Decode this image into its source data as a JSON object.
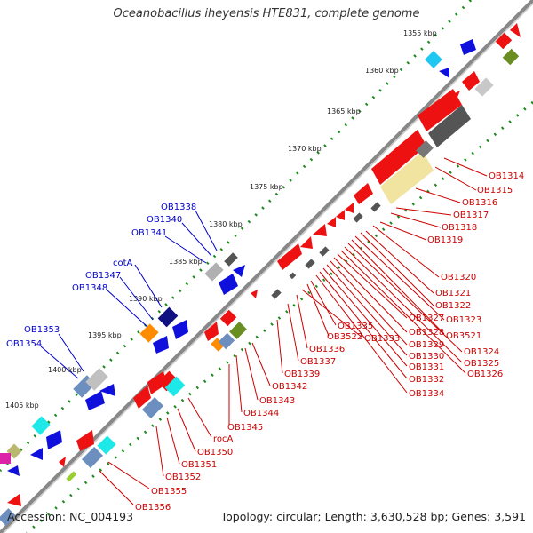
{
  "title": "Oceanobacillus iheyensis HTE831, complete genome",
  "accession": "Accession: NC_004193",
  "summary": "Topology: circular; Length: 3,630,528 bp; Genes: 3,591",
  "colors": {
    "forward_label": "#0000cc",
    "reverse_label": "#cc0000",
    "backbone": "#888888",
    "tick": "#1a8a1a"
  },
  "scale_labels": [
    "1355 kbp",
    "1360 kbp",
    "1365 kbp",
    "1370 kbp",
    "1375 kbp",
    "1380 kbp",
    "1385 kbp",
    "1390 kbp",
    "1395 kbp",
    "1400 kbp",
    "1405 kbp"
  ],
  "forward_labels": [
    "OB1338",
    "OB1340",
    "OB1341",
    "cotA",
    "OB1347",
    "OB1348",
    "OB1353",
    "OB1354"
  ],
  "reverse_labels": [
    "OB1314",
    "OB1315",
    "OB1316",
    "OB1317",
    "OB1318",
    "OB1319",
    "OB1320",
    "OB1321",
    "OB1322",
    "OB1323",
    "OB3521",
    "OB1324",
    "OB1325",
    "OB1326",
    "OB1327",
    "OB1328",
    "OB1329",
    "OB1330",
    "OB1331",
    "OB1332",
    "OB1334",
    "OB1335",
    "OB3522",
    "OB1333",
    "OB1336",
    "OB1337",
    "OB1339",
    "OB1342",
    "OB1343",
    "OB1344",
    "OB1345",
    "rocA",
    "OB1350",
    "OB1351",
    "OB1352",
    "OB1355",
    "OB1356"
  ]
}
